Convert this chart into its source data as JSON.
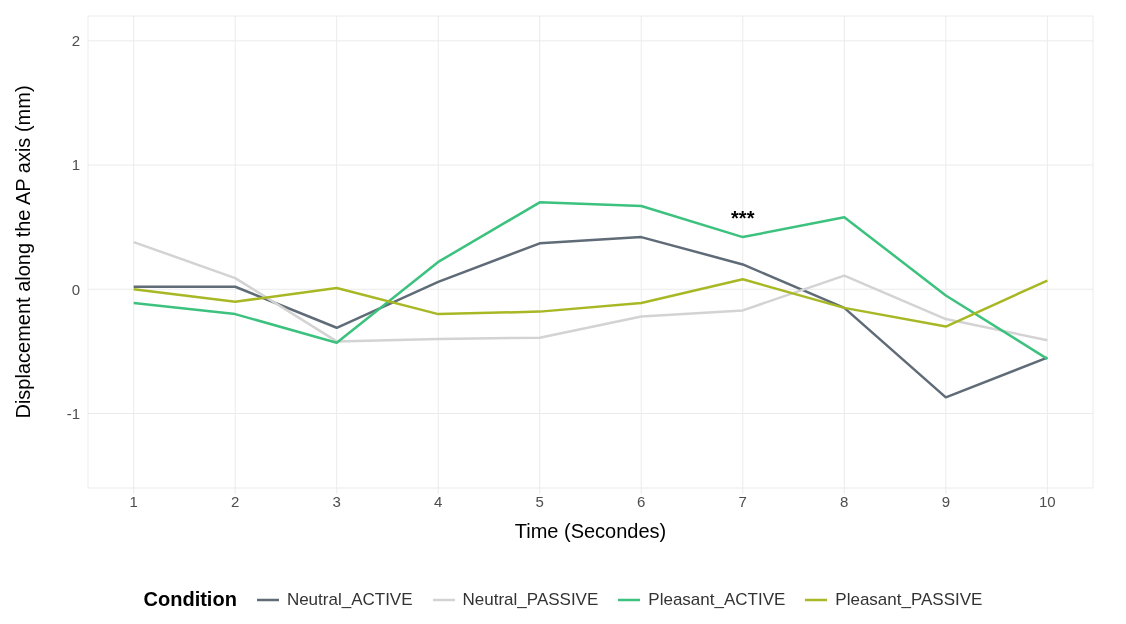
{
  "chart_data": {
    "type": "line",
    "xlabel": "Time (Secondes)",
    "ylabel": "Displacement along the AP axis (mm)",
    "legend_title": "Condition",
    "x": [
      1,
      2,
      3,
      4,
      5,
      6,
      7,
      8,
      9,
      10
    ],
    "series": [
      {
        "name": "Neutral_ACTIVE",
        "color": "#5f6b77",
        "values": [
          0.02,
          0.02,
          -0.31,
          0.06,
          0.37,
          0.42,
          0.2,
          -0.15,
          -0.87,
          -0.55
        ]
      },
      {
        "name": "Neutral_PASSIVE",
        "color": "#d3d3d3",
        "values": [
          0.38,
          0.09,
          -0.42,
          -0.4,
          -0.39,
          -0.22,
          -0.17,
          0.11,
          -0.24,
          -0.41
        ]
      },
      {
        "name": "Pleasant_ACTIVE",
        "color": "#3cc27e",
        "values": [
          -0.11,
          -0.2,
          -0.43,
          0.22,
          0.7,
          0.67,
          0.42,
          0.58,
          -0.05,
          -0.56
        ]
      },
      {
        "name": "Pleasant_PASSIVE",
        "color": "#a8b825",
        "values": [
          0.0,
          -0.1,
          0.01,
          -0.2,
          -0.18,
          -0.11,
          0.08,
          -0.15,
          -0.3,
          0.07
        ]
      }
    ],
    "annotations": [
      {
        "text": "***",
        "x": 7,
        "y": 0.42
      }
    ],
    "xlim": [
      0.55,
      10.45
    ],
    "xticks": [
      1,
      2,
      3,
      4,
      5,
      6,
      7,
      8,
      9,
      10
    ],
    "ylim": [
      -1.6,
      2.2
    ],
    "yticks": [
      -1,
      0,
      1,
      2
    ],
    "grid": true,
    "legend": "bottom",
    "marker": "none",
    "line_style": "solid"
  }
}
